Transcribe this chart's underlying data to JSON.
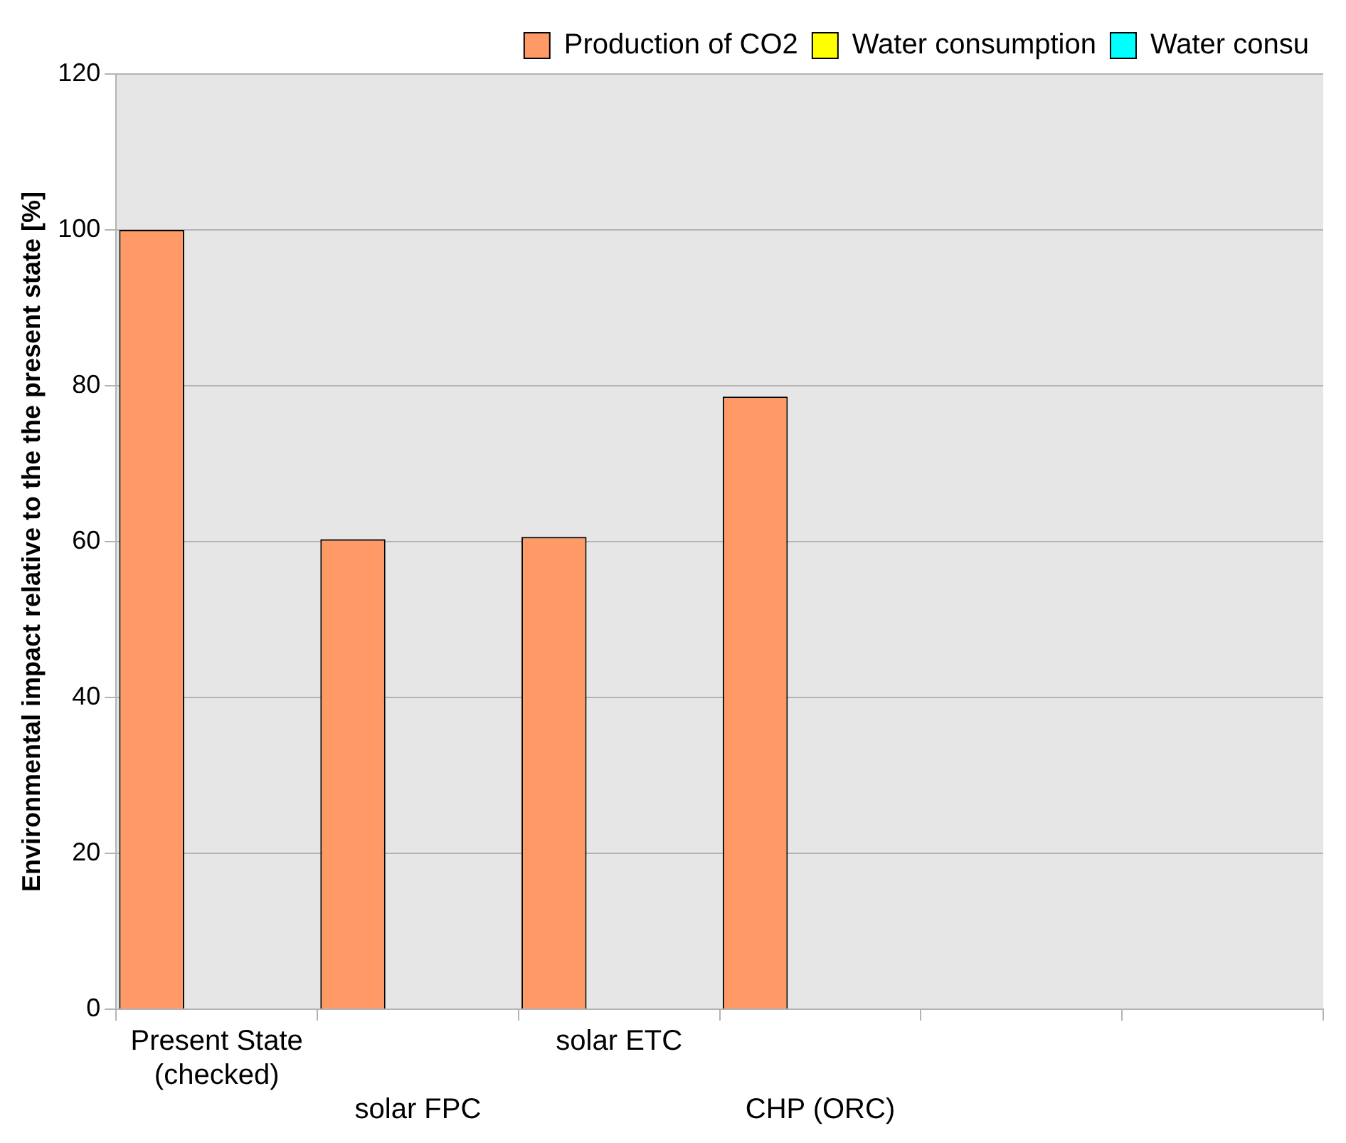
{
  "chart_data": {
    "type": "bar",
    "ylabel": "Environmental impact relative to the the present state [%]",
    "categories": [
      "Present State (checked)",
      "solar FPC",
      "solar ETC",
      "CHP (ORC)",
      null,
      null
    ],
    "series": [
      {
        "name": "Production of CO2",
        "color": "#ff9966",
        "values": [
          100,
          60.3,
          60.6,
          78.6,
          null,
          null
        ]
      },
      {
        "name": "Water consumption",
        "color": "#ffff00",
        "values": [
          null,
          null,
          null,
          null,
          null,
          null
        ]
      },
      {
        "name": "Water consu",
        "color": "#00ffff",
        "values": [
          null,
          null,
          null,
          null,
          null,
          null
        ]
      }
    ],
    "ylim": [
      0,
      120
    ],
    "yticks": [
      0,
      20,
      40,
      60,
      80,
      100,
      120
    ],
    "grid": "y",
    "legend": "top right"
  }
}
